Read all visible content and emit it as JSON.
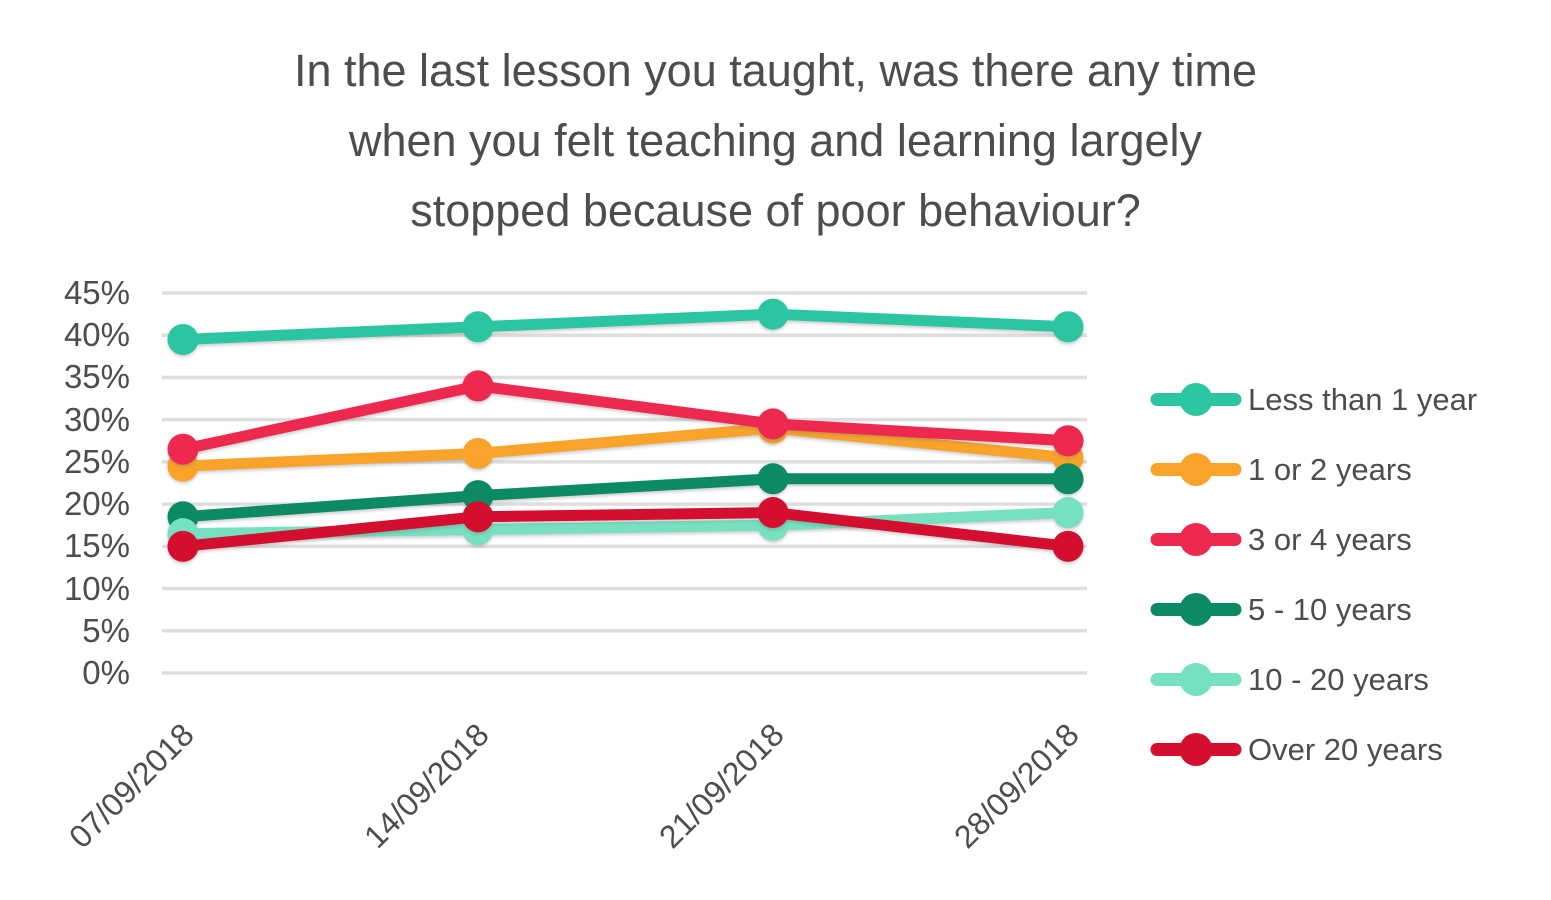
{
  "chart_data": {
    "type": "line",
    "title": "In the last lesson you taught, was there any time when you felt teaching and learning largely stopped because of poor behaviour?",
    "title_lines": [
      "In the last lesson you taught, was there any time",
      "when you felt teaching and learning largely",
      "stopped because of poor behaviour?"
    ],
    "categories": [
      "07/09/2018",
      "14/09/2018",
      "21/09/2018",
      "28/09/2018"
    ],
    "series": [
      {
        "name": "Less than 1 year",
        "color": "#2BC5A1",
        "values": [
          39.5,
          41,
          42.5,
          41
        ]
      },
      {
        "name": "1 or 2 years",
        "color": "#F9A32B",
        "values": [
          24.5,
          26,
          29,
          25.5
        ]
      },
      {
        "name": "3 or 4 years",
        "color": "#EE2950",
        "values": [
          26.5,
          34,
          29.5,
          27.5
        ]
      },
      {
        "name": "5 - 10 years",
        "color": "#0B8A63",
        "values": [
          18.5,
          21,
          23,
          23
        ]
      },
      {
        "name": "10 - 20 years",
        "color": "#76E0C1",
        "values": [
          16.5,
          17,
          17.5,
          19
        ]
      },
      {
        "name": "Over 20 years",
        "color": "#D40E2E",
        "values": [
          15,
          18.5,
          19,
          15
        ]
      }
    ],
    "y_axis": {
      "min": 0,
      "max": 45,
      "step": 5,
      "unit": "%",
      "tick_labels_top_to_bottom": [
        "45%",
        "40%",
        "35%",
        "30%",
        "25%",
        "20%",
        "15%",
        "10%",
        "5%",
        "0%"
      ]
    },
    "x_axis": {
      "tick_labels": [
        "07/09/2018",
        "14/09/2018",
        "21/09/2018",
        "28/09/2018"
      ],
      "label_rotation_deg": -45
    },
    "grid": true,
    "legend_position": "right",
    "style_colors": {
      "gridline": "#DEDEDE",
      "text": "#4D4D4D",
      "background": "#FFFFFF"
    }
  }
}
